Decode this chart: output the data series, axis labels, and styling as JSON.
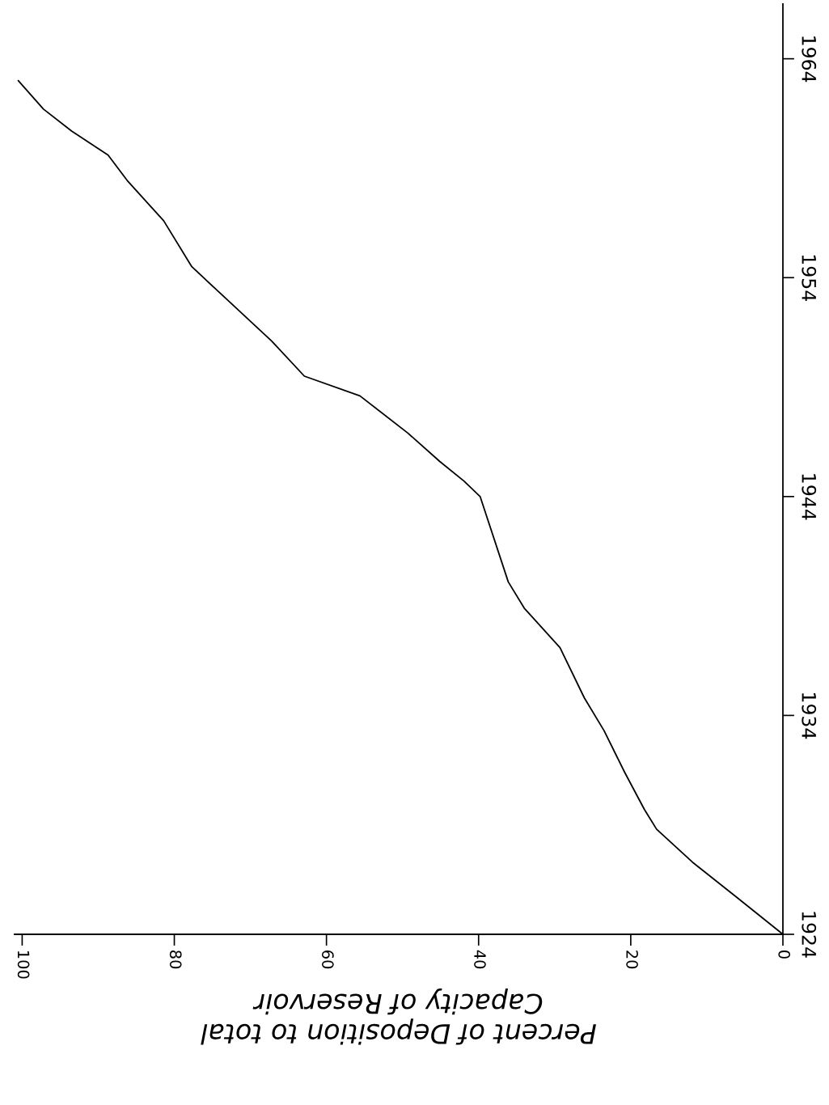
{
  "chart_data": {
    "type": "line",
    "xlabel": "Percent of Deposition to total\nCapacity of Reservoir",
    "x": [
      0,
      6.1,
      11.9,
      16.6,
      18.2,
      20.8,
      23.5,
      26.1,
      29.3,
      34,
      36.1,
      39.8,
      41.9,
      45.1,
      49.3,
      55.6,
      62.9,
      67.2,
      74,
      77.7,
      81.4,
      86.1,
      88.7,
      93.5,
      97.2,
      100.5
    ],
    "series": [
      {
        "color": "#000000",
        "values": [
          1924,
          1925.7,
          1927.3,
          1928.8,
          1929.7,
          1931.4,
          1933.3,
          1934.8,
          1937.1,
          1938.9,
          1940.1,
          1944,
          1944.7,
          1945.6,
          1946.9,
          1948.6,
          1949.5,
          1951.1,
          1953.3,
          1954.5,
          1956.6,
          1958.4,
          1959.6,
          1960.7,
          1961.7,
          1963
        ]
      }
    ],
    "xlim": [
      101,
      0
    ],
    "xticks": [
      0,
      20,
      40,
      60,
      80,
      100
    ],
    "ylim": [
      1924,
      1966.5
    ],
    "yticks": [
      1924,
      1934,
      1944,
      1954,
      1964
    ],
    "grid": false,
    "legend": false,
    "marker": "none",
    "line_style": "solid"
  }
}
